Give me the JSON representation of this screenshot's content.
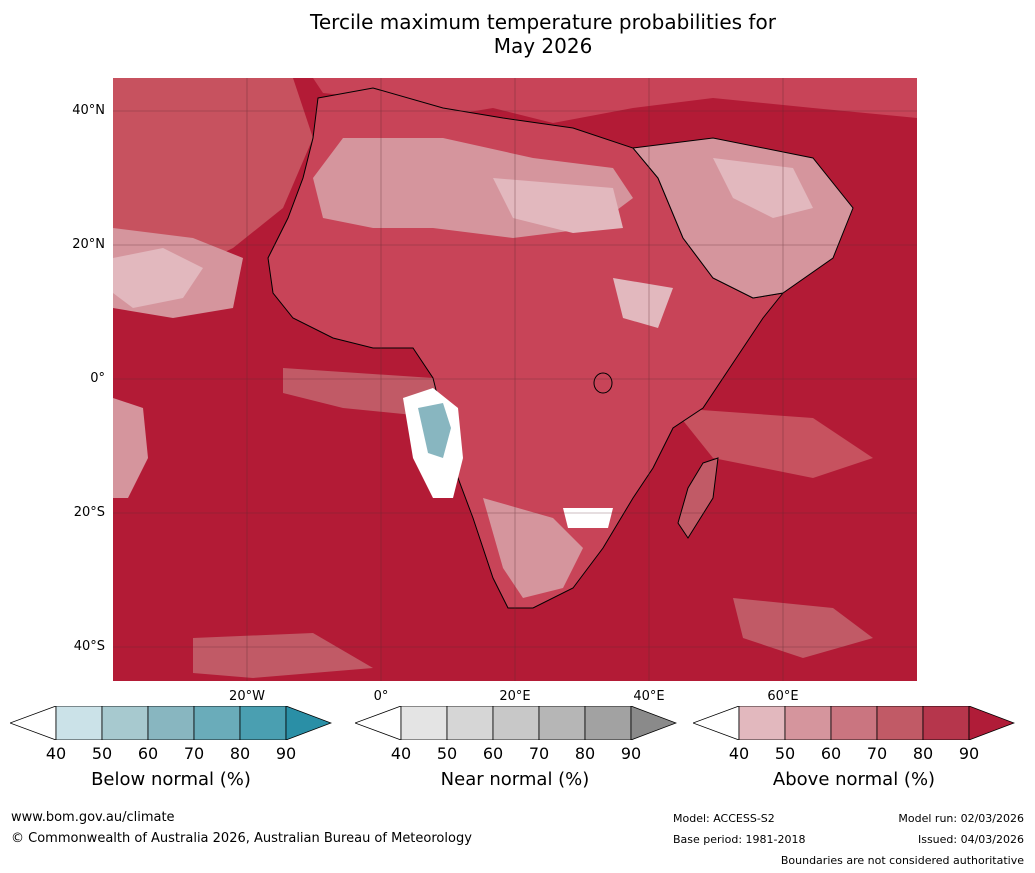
{
  "title": {
    "line1": "Tercile maximum temperature probabilities for",
    "line2": "May 2026"
  },
  "map": {
    "latitude_labels": [
      "40°N",
      "20°N",
      "0°",
      "20°S",
      "40°S"
    ],
    "longitude_labels": [
      "20°W",
      "0°",
      "20°E",
      "40°E",
      "60°E"
    ],
    "ocean_color": "#b31b36",
    "land_color": "#c84458"
  },
  "colorbars": [
    {
      "label": "Below normal (%)",
      "ticks": [
        "40",
        "50",
        "60",
        "70",
        "80",
        "90"
      ],
      "colors": [
        "#ffffff",
        "#cbe2e8",
        "#a7c9cf",
        "#88b6c0",
        "#6aacba",
        "#4a9fb1",
        "#2a8fa6"
      ]
    },
    {
      "label": "Near normal (%)",
      "ticks": [
        "40",
        "50",
        "60",
        "70",
        "80",
        "90"
      ],
      "colors": [
        "#ffffff",
        "#e4e4e4",
        "#d6d6d6",
        "#c8c8c8",
        "#b6b6b6",
        "#a2a2a2",
        "#8a8a8a"
      ]
    },
    {
      "label": "Above normal (%)",
      "ticks": [
        "40",
        "50",
        "60",
        "70",
        "80",
        "90"
      ],
      "colors": [
        "#ffffff",
        "#e2b8be",
        "#d5959d",
        "#ca7580",
        "#c15a66",
        "#b6364c",
        "#b01c38"
      ]
    }
  ],
  "footer": {
    "website": "www.bom.gov.au/climate",
    "copyright": "© Commonwealth of Australia 2026, Australian Bureau of Meteorology",
    "model": "Model: ACCESS-S2",
    "base_period": "Base period: 1981-2018",
    "model_run": "Model run: 02/03/2026",
    "issued": "Issued: 04/03/2026",
    "disclaimer": "Boundaries are not considered authoritative"
  }
}
